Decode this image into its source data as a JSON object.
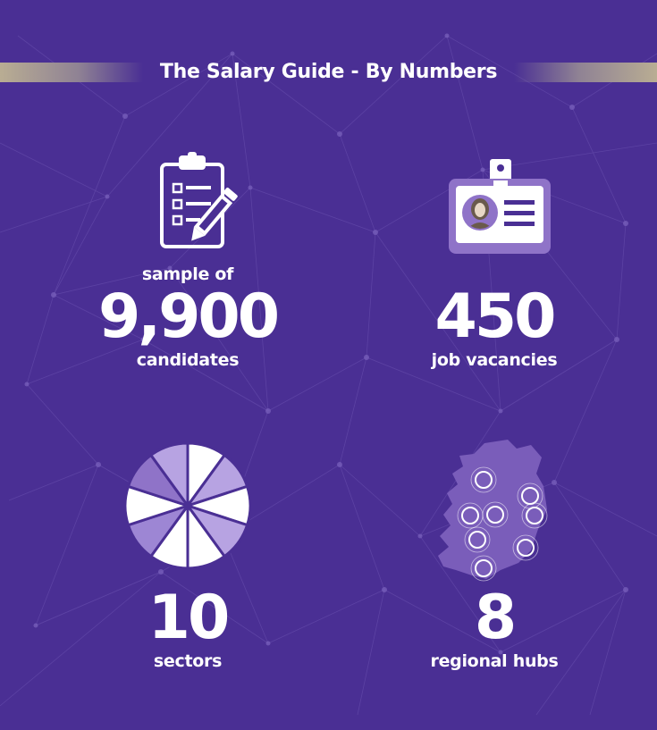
{
  "header": {
    "title": "The Salary Guide - By Numbers"
  },
  "stats": {
    "candidates": {
      "prefix": "sample of",
      "value": "9,900",
      "label": "candidates",
      "icon": "clipboard-icon"
    },
    "vacancies": {
      "value": "450",
      "label": "job vacancies",
      "icon": "id-badge-icon"
    },
    "sectors": {
      "value": "10",
      "label": "sectors",
      "icon": "pie-icon"
    },
    "hubs": {
      "value": "8",
      "label": "regional hubs",
      "icon": "map-icon"
    }
  },
  "colors": {
    "background": "#4a2f94",
    "accent": "#b9ad93",
    "text": "#ffffff",
    "lilac": "#8f73c8"
  }
}
